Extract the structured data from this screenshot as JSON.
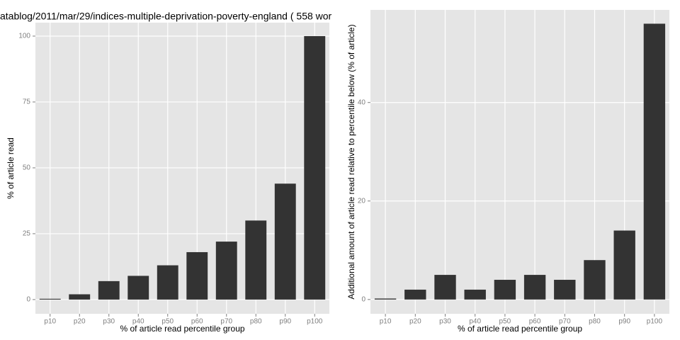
{
  "chart_data": [
    {
      "type": "bar",
      "title": "atablog/2011/mar/29/indices-multiple-deprivation-poverty-england ( 558 wor",
      "x_label": "% of article read percentile group",
      "y_label": "% of article read",
      "categories": [
        "p10",
        "p20",
        "p30",
        "p40",
        "p50",
        "p60",
        "p70",
        "p80",
        "p90",
        "p100"
      ],
      "values": [
        0.3,
        2,
        7,
        9,
        13,
        18,
        22,
        30,
        44,
        100
      ],
      "color": "#333333",
      "ylim": [
        -5.4,
        105.1
      ],
      "yticks": [
        0,
        25,
        50,
        75,
        100
      ],
      "grid": true
    },
    {
      "type": "bar",
      "x_label": "% of article read percentile group",
      "y_label": "Additional amount of article read relative to percentile below (% of article)",
      "categories": [
        "p10",
        "p20",
        "p30",
        "p40",
        "p50",
        "p60",
        "p70",
        "p80",
        "p90",
        "p100"
      ],
      "values": [
        0.2,
        2,
        5,
        2,
        4,
        5,
        4,
        8,
        14,
        56
      ],
      "color": "#333333",
      "ylim": [
        -2.9,
        58.8
      ],
      "yticks": [
        0,
        20,
        40
      ],
      "grid": true
    }
  ]
}
